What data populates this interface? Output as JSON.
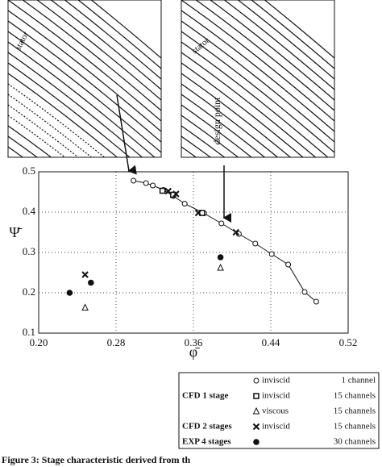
{
  "chart_data": {
    "type": "scatter",
    "xlabel": "φ̄",
    "ylabel": "Ψ̄",
    "xlim": [
      0.2,
      0.52
    ],
    "xticks": [
      {
        "value": 0.2,
        "label": "0.20"
      },
      0.28,
      0.36,
      0.44,
      {
        "value": 0.52,
        "label": "0.52"
      }
    ],
    "ylim": [
      0.1,
      0.5
    ],
    "yticks": [
      0.1,
      0.2,
      0.3,
      0.4,
      0.5
    ],
    "grid": true,
    "annotations": [
      "stator",
      "stator",
      "design point"
    ],
    "caption": "Figure 3: Stage characteristic derived from th",
    "series": [
      {
        "name": "inviscid",
        "group": "CFD 1 stage",
        "channels": "1 channel",
        "marker": "circle",
        "line": true,
        "color": "#111",
        "x": [
          0.298,
          0.311,
          0.318,
          0.329,
          0.339,
          0.351,
          0.371,
          0.389,
          0.407,
          0.424,
          0.441,
          0.458,
          0.475,
          0.487
        ],
        "values": [
          0.478,
          0.472,
          0.466,
          0.455,
          0.44,
          0.421,
          0.397,
          0.372,
          0.346,
          0.322,
          0.296,
          0.27,
          0.202,
          0.178
        ]
      },
      {
        "name": "inviscid",
        "channels": "15 channels",
        "marker": "square",
        "color": "#111",
        "x": [
          0.328,
          0.339,
          0.369
        ],
        "values": [
          0.453,
          0.443,
          0.398
        ]
      },
      {
        "name": "viscous",
        "channels": "15 channels",
        "marker": "triangle",
        "color": "#111",
        "x": [
          0.248,
          0.388
        ],
        "values": [
          0.163,
          0.262
        ]
      },
      {
        "name": "inviscid",
        "group": "CFD 2 stages",
        "channels": "15 channels",
        "marker": "cross",
        "color": "#111",
        "x": [
          0.248,
          0.334,
          0.342,
          0.365,
          0.404
        ],
        "values": [
          0.245,
          0.452,
          0.445,
          0.398,
          0.35
        ]
      },
      {
        "name": "",
        "group": "EXP 4 stages",
        "channels": "30 channels",
        "marker": "dot",
        "color": "#111",
        "x": [
          0.232,
          0.254,
          0.388
        ],
        "values": [
          0.2,
          0.225,
          0.288
        ]
      }
    ]
  }
}
